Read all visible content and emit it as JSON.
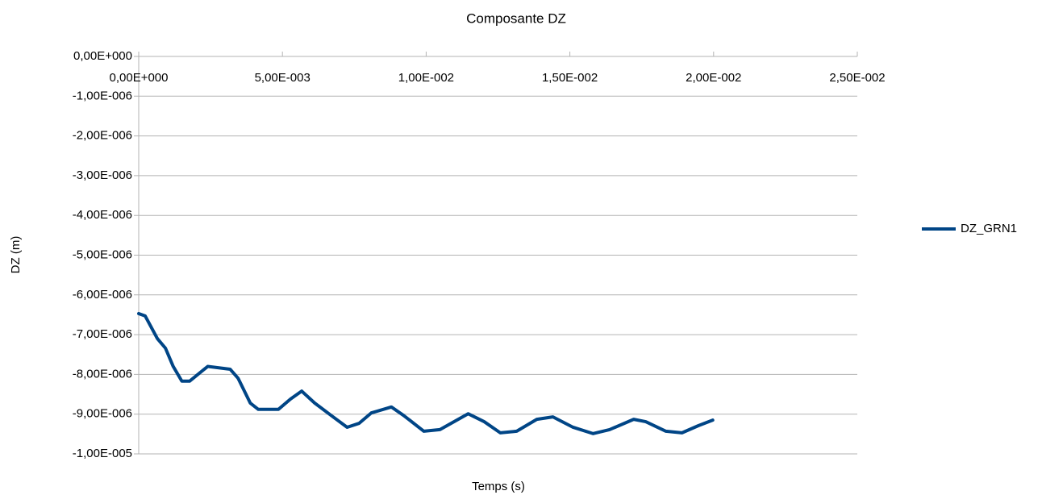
{
  "chart_data": {
    "type": "line",
    "title": "Composante DZ",
    "x_label": "Temps (s)",
    "y_label": "DZ (m)",
    "x": [
      0,
      0.000225,
      0.00065,
      0.00093,
      0.0012,
      0.0015,
      0.00177,
      0.0024,
      0.00318,
      0.00346,
      0.00388,
      0.00416,
      0.00486,
      0.00528,
      0.00567,
      0.00612,
      0.00669,
      0.00725,
      0.00767,
      0.00809,
      0.00879,
      0.00921,
      0.00992,
      0.01048,
      0.01146,
      0.01202,
      0.01258,
      0.01315,
      0.01385,
      0.01441,
      0.01511,
      0.01581,
      0.01638,
      0.01722,
      0.01764,
      0.01834,
      0.0189,
      0.01947,
      0.01997
    ],
    "series": [
      {
        "name": "DZ_GRN1",
        "color": "#004586",
        "values": [
          -6.47e-06,
          -6.53e-06,
          -7.1e-06,
          -7.34e-06,
          -7.8e-06,
          -8.17e-06,
          -8.17e-06,
          -7.8e-06,
          -7.87e-06,
          -8.1e-06,
          -8.72e-06,
          -8.88e-06,
          -8.88e-06,
          -8.62e-06,
          -8.42e-06,
          -8.72e-06,
          -9.03e-06,
          -9.33e-06,
          -9.23e-06,
          -8.97e-06,
          -8.82e-06,
          -9.03e-06,
          -9.43e-06,
          -9.39e-06,
          -8.99e-06,
          -9.19e-06,
          -9.47e-06,
          -9.43e-06,
          -9.13e-06,
          -9.07e-06,
          -9.33e-06,
          -9.49e-06,
          -9.39e-06,
          -9.13e-06,
          -9.19e-06,
          -9.43e-06,
          -9.47e-06,
          -9.29e-06,
          -9.15e-06
        ]
      }
    ],
    "xlim": [
      0,
      0.025
    ],
    "xticks": [
      {
        "value": 0,
        "label": "0,00E+000"
      },
      {
        "value": 0.005,
        "label": "5,00E-003"
      },
      {
        "value": 0.01,
        "label": "1,00E-002"
      },
      {
        "value": 0.015,
        "label": "1,50E-002"
      },
      {
        "value": 0.02,
        "label": "2,00E-002"
      },
      {
        "value": 0.025,
        "label": "2,50E-002"
      }
    ],
    "ylim": [
      -1e-05,
      0
    ],
    "yticks": [
      {
        "value": 0,
        "label": "0,00E+000"
      },
      {
        "value": -1e-06,
        "label": "-1,00E-006"
      },
      {
        "value": -2e-06,
        "label": "-2,00E-006"
      },
      {
        "value": -3e-06,
        "label": "-3,00E-006"
      },
      {
        "value": -4e-06,
        "label": "-4,00E-006"
      },
      {
        "value": -5e-06,
        "label": "-5,00E-006"
      },
      {
        "value": -6e-06,
        "label": "-6,00E-006"
      },
      {
        "value": -7e-06,
        "label": "-7,00E-006"
      },
      {
        "value": -8e-06,
        "label": "-8,00E-006"
      },
      {
        "value": -9e-06,
        "label": "-9,00E-006"
      },
      {
        "value": -1e-05,
        "label": "-1,00E-005"
      }
    ],
    "grid": true,
    "legend": "right"
  }
}
